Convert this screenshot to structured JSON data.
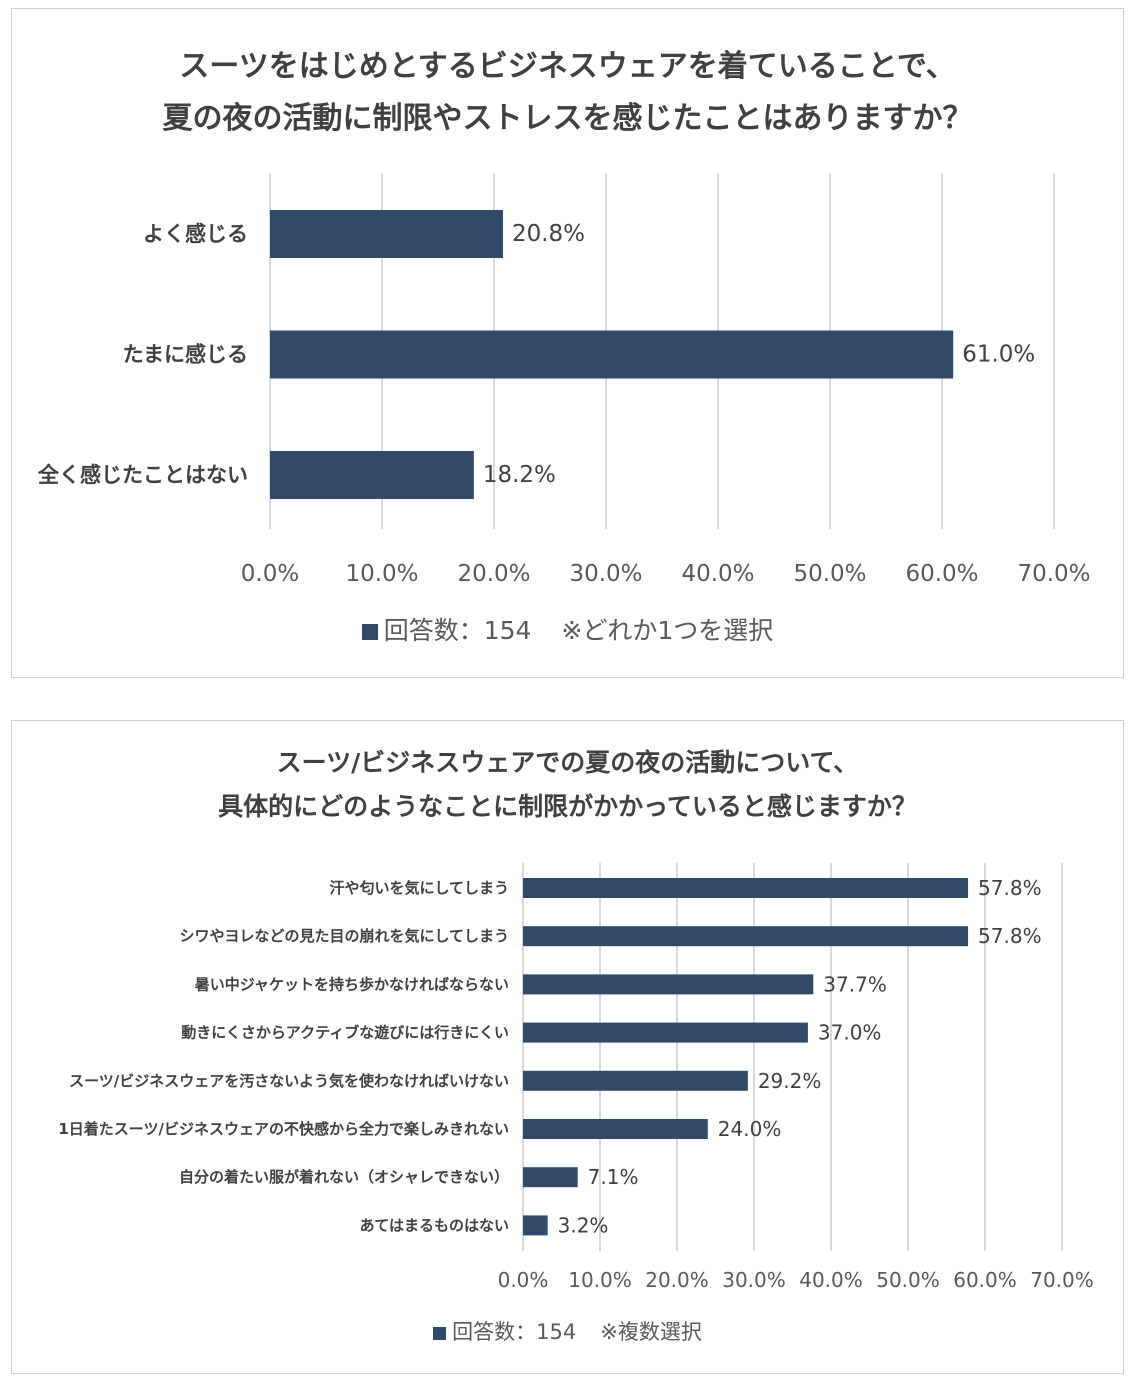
{
  "chart_data": [
    {
      "type": "bar",
      "orientation": "horizontal",
      "title_lines": [
        "スーツをはじめとするビジネスウェアを着ていることで、",
        "夏の夜の活動に制限やストレスを感じたことはありますか？"
      ],
      "categories": [
        "よく感じる",
        "たまに感じる",
        "全く感じたことはない"
      ],
      "values": [
        20.8,
        61.0,
        18.2
      ],
      "value_labels": [
        "20.8%",
        "61.0%",
        "18.2%"
      ],
      "xlim": [
        0,
        70
      ],
      "ticks": [
        "0.0%",
        "10.0%",
        "20.0%",
        "30.0%",
        "40.0%",
        "50.0%",
        "60.0%",
        "70.0%"
      ],
      "grid": true,
      "legend": {
        "label": "回答数：154",
        "note": "※どれか1つを選択",
        "position": "bottom"
      },
      "color": "#30496b"
    },
    {
      "type": "bar",
      "orientation": "horizontal",
      "title_lines": [
        "スーツ/ビジネスウェアでの夏の夜の活動について、",
        "具体的にどのようなことに制限がかかっていると感じますか？"
      ],
      "categories": [
        "汗や匂いを気にしてしまう",
        "シワやヨレなどの見た目の崩れを気にしてしまう",
        "暑い中ジャケットを持ち歩かなければならない",
        "動きにくさからアクティブな遊びには行きにくい",
        "スーツ/ビジネスウェアを汚さないよう気を使わなければいけない",
        "1日着たスーツ/ビジネスウェアの不快感から全力で楽しみきれない",
        "自分の着たい服が着れない（オシャレできない）",
        "あてはまるものはない"
      ],
      "values": [
        57.8,
        57.8,
        37.7,
        37.0,
        29.2,
        24.0,
        7.1,
        3.2
      ],
      "value_labels": [
        "57.8%",
        "57.8%",
        "37.7%",
        "37.0%",
        "29.2%",
        "24.0%",
        "7.1%",
        "3.2%"
      ],
      "xlim": [
        0,
        70
      ],
      "ticks": [
        "0.0%",
        "10.0%",
        "20.0%",
        "30.0%",
        "40.0%",
        "50.0%",
        "60.0%",
        "70.0%"
      ],
      "grid": true,
      "legend": {
        "label": "回答数：154",
        "note": "※複数選択",
        "position": "bottom"
      },
      "color": "#30496b"
    }
  ]
}
